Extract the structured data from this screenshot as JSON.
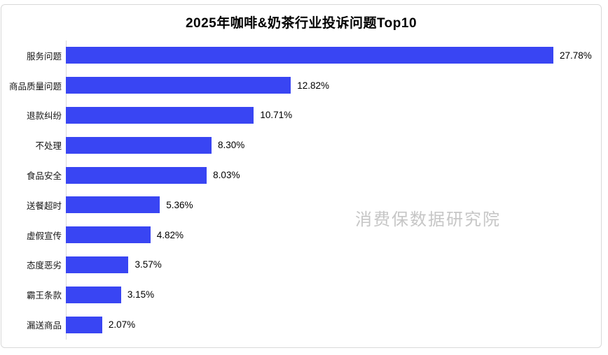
{
  "title": "2025年咖啡&奶茶行业投诉问题Top10",
  "watermark": "消费保数据研究院",
  "colors": {
    "bar": "#3945F3",
    "axis": "#d9d9d9",
    "frame_border": "#d9d9d9",
    "watermark": "#c6c6c6",
    "title_text": "#000000",
    "label_text": "#141414"
  },
  "chart_data": {
    "type": "bar",
    "orientation": "horizontal",
    "title": "2025年咖啡&奶茶行业投诉问题Top10",
    "categories": [
      "服务问题",
      "商品质量问题",
      "退款纠纷",
      "不处理",
      "食品安全",
      "送餐超时",
      "虚假宣传",
      "态度恶劣",
      "霸王条款",
      "漏送商品"
    ],
    "values": [
      27.78,
      12.82,
      10.71,
      8.3,
      8.03,
      5.36,
      4.82,
      3.57,
      3.15,
      2.07
    ],
    "value_labels": [
      "27.78%",
      "12.82%",
      "10.71%",
      "8.30%",
      "8.03%",
      "5.36%",
      "4.82%",
      "3.57%",
      "3.15%",
      "2.07%"
    ],
    "xlabel": "",
    "ylabel": "",
    "xlim": [
      0,
      27.78
    ],
    "grid": false,
    "legend": false,
    "value_labels_position": "outside-end",
    "bar_color": "#3945F3"
  }
}
